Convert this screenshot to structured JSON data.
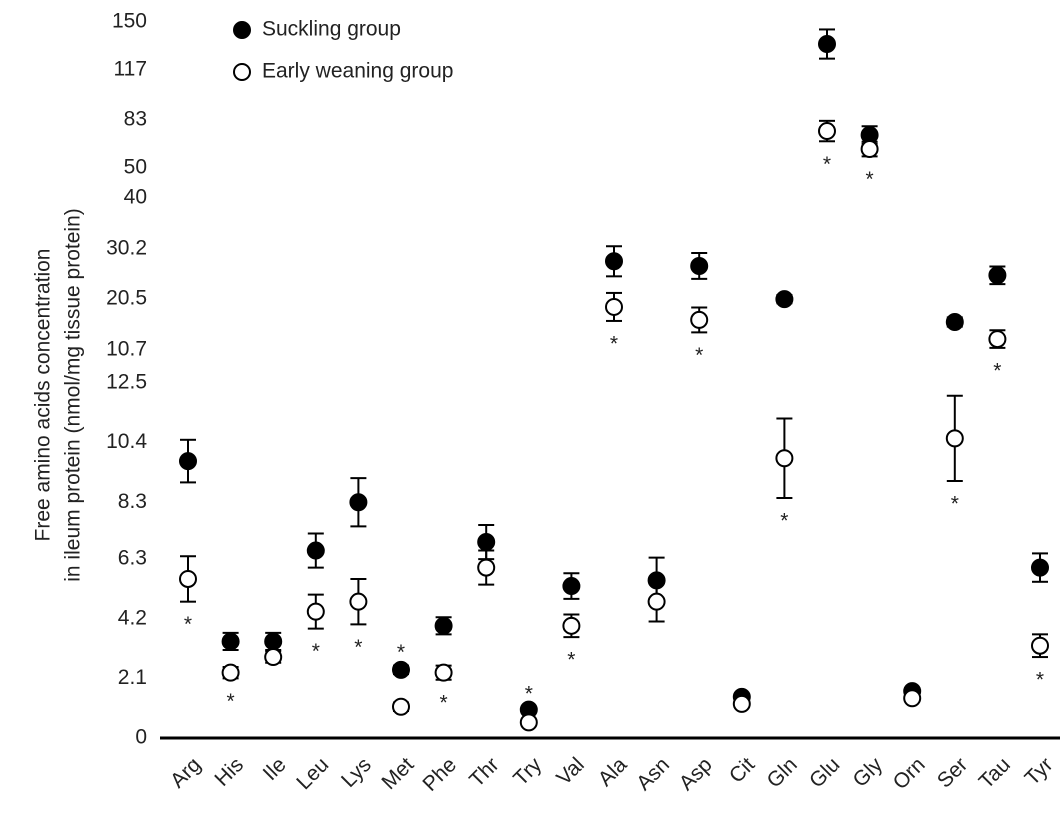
{
  "chart_data": {
    "type": "dot-error",
    "ylabel": [
      "Free amino acids concentration",
      "in ileum protein (nmol/mg tissue protein)"
    ],
    "categories": [
      "Arg",
      "His",
      "Ile",
      "Leu",
      "Lys",
      "Met",
      "Phe",
      "Thr",
      "Try",
      "Val",
      "Ala",
      "Asn",
      "Asp",
      "Cit",
      "Gln",
      "Glu",
      "Gly",
      "Orn",
      "Ser",
      "Tau",
      "Tyr"
    ],
    "y_segments": [
      {
        "ylim": [
          0,
          12.5
        ],
        "yticks": [
          0,
          2.1,
          4.2,
          6.3,
          8.3,
          10.4,
          12.5
        ]
      },
      {
        "ylim": [
          10.7,
          40
        ],
        "yticks": [
          10.7,
          20.5,
          30.2,
          40
        ]
      },
      {
        "ylim": [
          50,
          150
        ],
        "yticks": [
          50,
          83,
          117,
          150
        ]
      }
    ],
    "series": [
      {
        "name": "Suckling group",
        "color": "#000000",
        "filled": true,
        "values": [
          9.75,
          3.4,
          3.4,
          6.6,
          8.3,
          2.4,
          3.95,
          6.9,
          1.0,
          5.35,
          27.8,
          5.55,
          26.9,
          1.45,
          20.5,
          134.9,
          72.6,
          1.65,
          16.1,
          25.1,
          6.0
        ],
        "errors": [
          0.75,
          0.3,
          0.3,
          0.6,
          0.85,
          0.15,
          0.3,
          0.6,
          0.1,
          0.45,
          2.9,
          0.8,
          2.5,
          0.1,
          0.8,
          10,
          6,
          0.1,
          0.9,
          1.7,
          0.5
        ]
      },
      {
        "name": "Early weaning group",
        "color": "#000000",
        "filled": false,
        "values": [
          5.6,
          2.3,
          2.85,
          4.45,
          4.8,
          1.1,
          2.3,
          6.0,
          0.55,
          3.95,
          19.0,
          4.8,
          16.5,
          1.2,
          9.85,
          75.3,
          63,
          1.4,
          10.55,
          12.8,
          3.25
        ],
        "errors": [
          0.8,
          0.2,
          0.2,
          0.6,
          0.8,
          0.15,
          0.25,
          0.6,
          0.05,
          0.4,
          2.7,
          0.7,
          2.4,
          0.1,
          1.4,
          7,
          5,
          0.1,
          1.5,
          1.7,
          0.4
        ]
      }
    ],
    "significance": [
      "*",
      "*",
      null,
      "*",
      "*",
      "*",
      "*",
      null,
      "*",
      "*",
      "*",
      null,
      "*",
      null,
      "*",
      "*",
      "*",
      null,
      "*",
      "*",
      "*"
    ],
    "legend": "upper left"
  }
}
